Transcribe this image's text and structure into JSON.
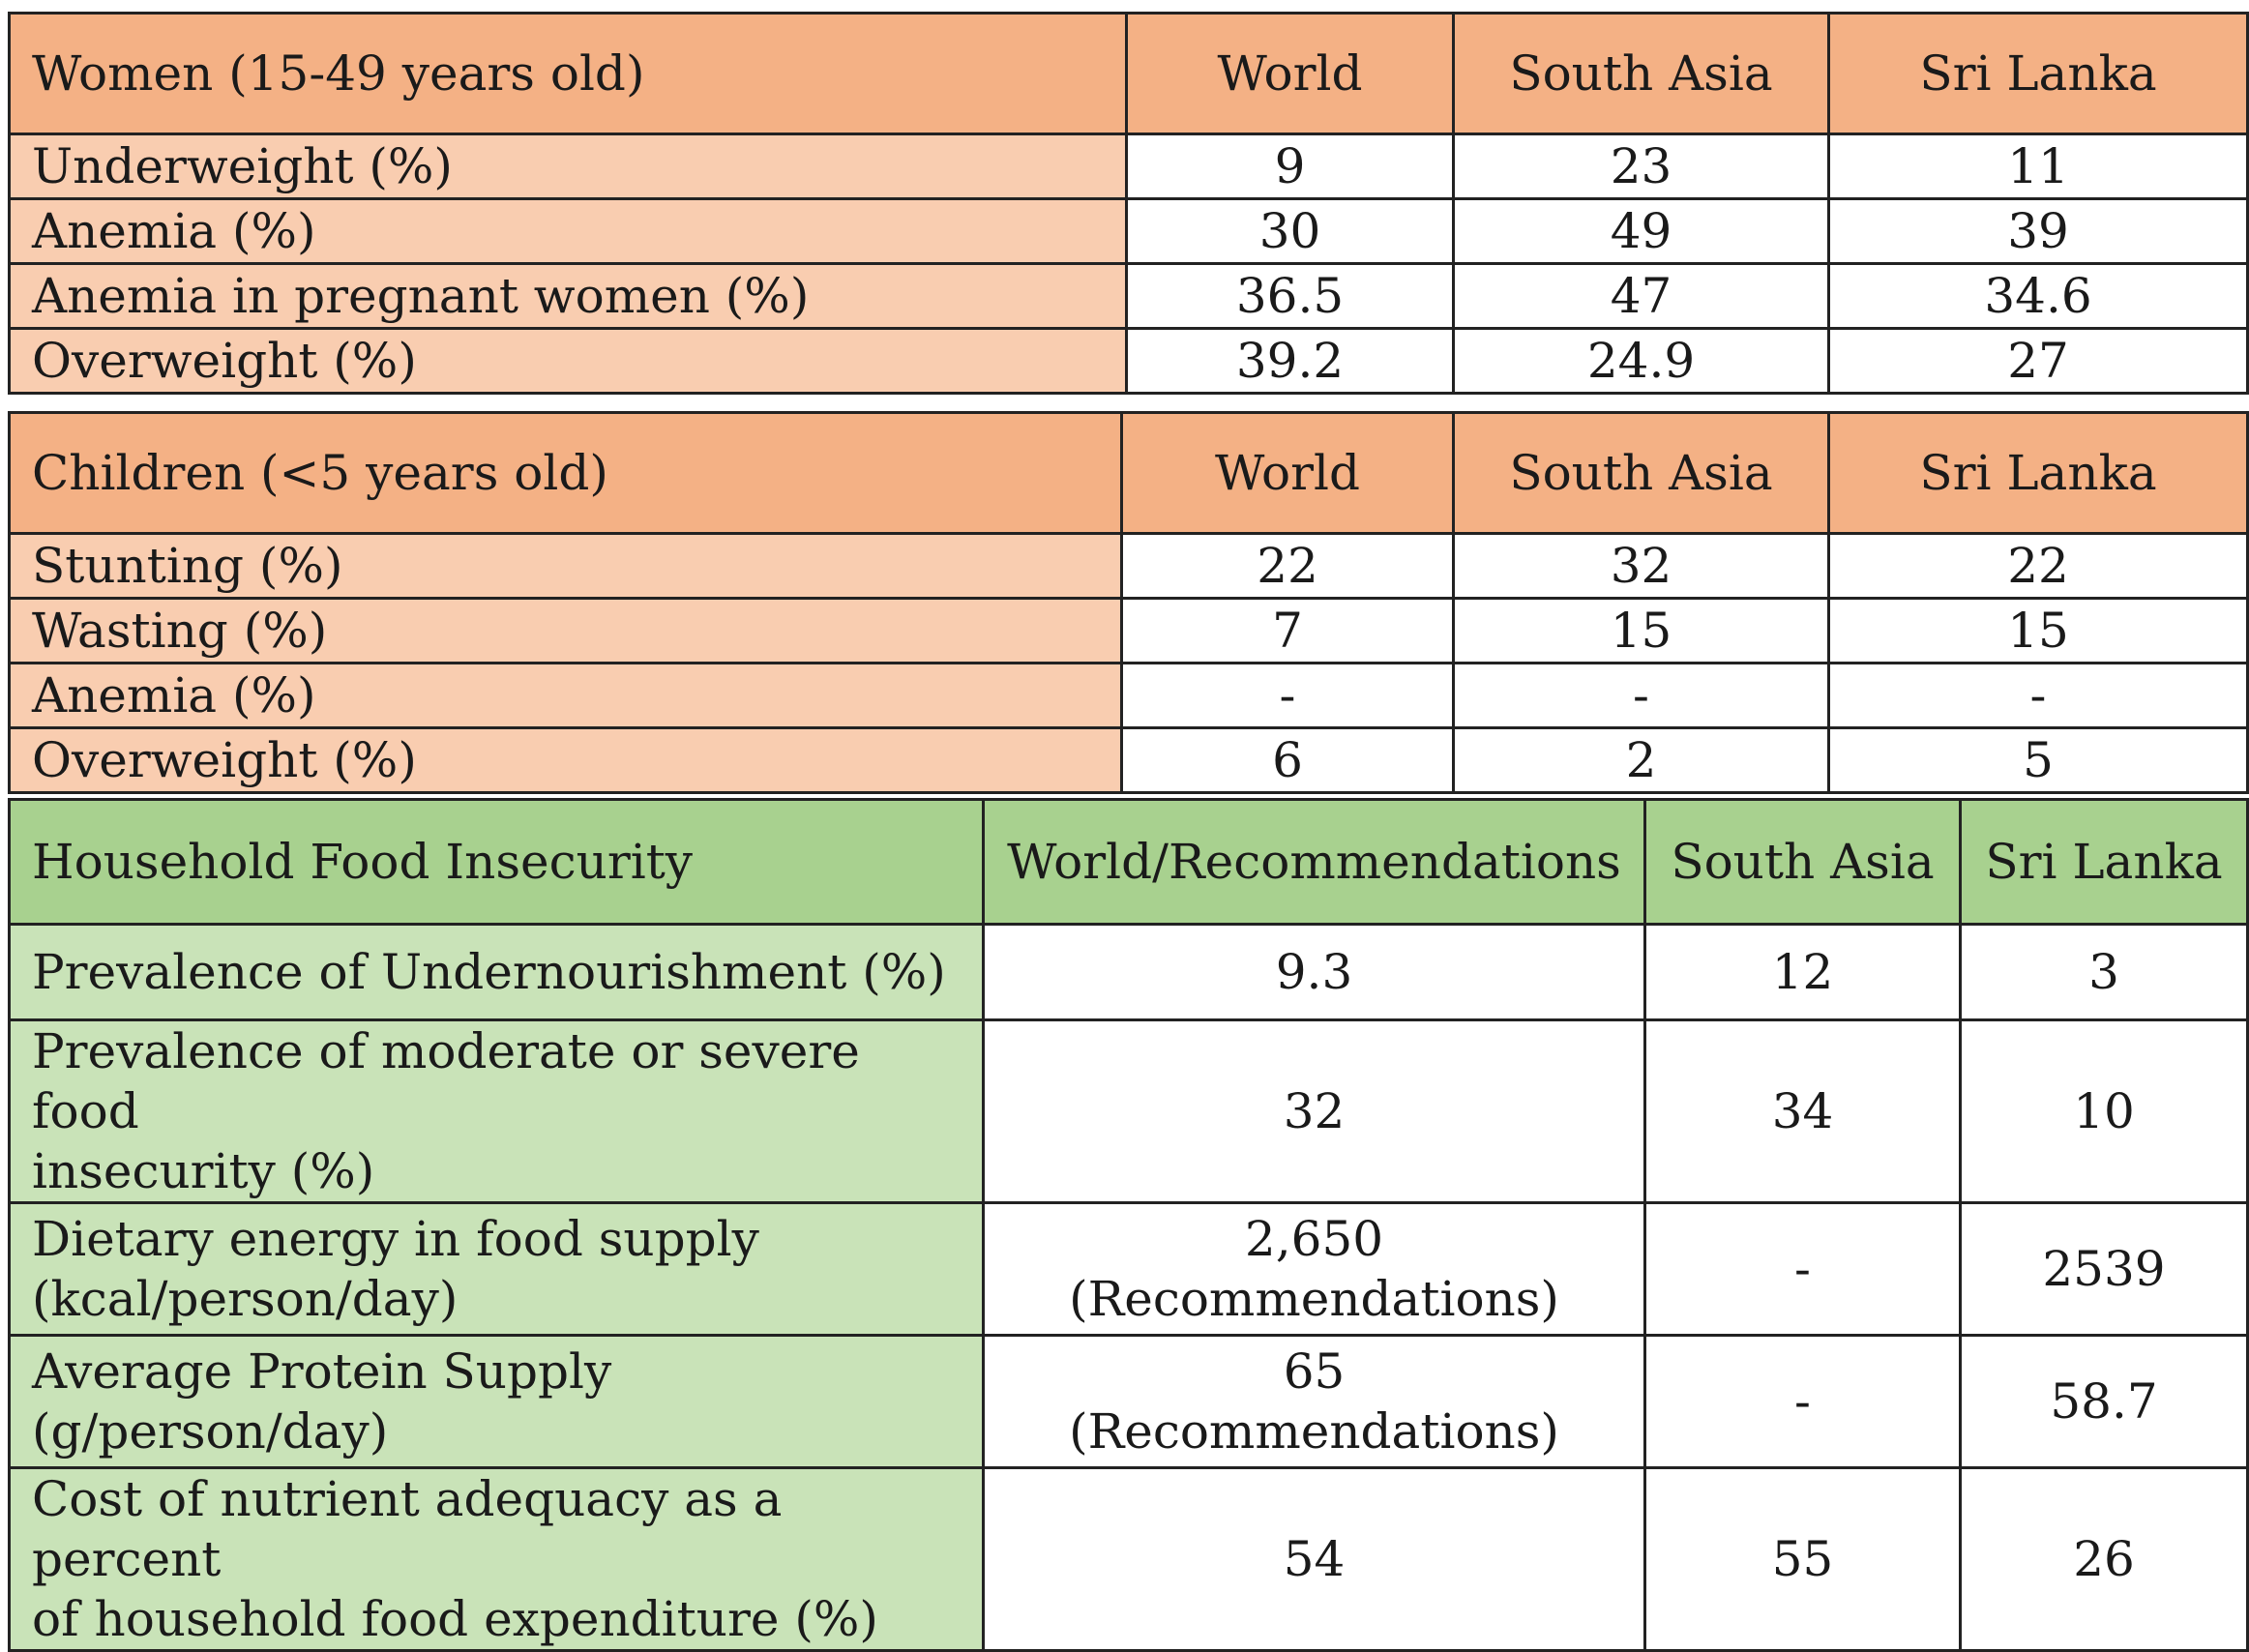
{
  "women": {
    "headers": [
      "Women (15-49 years old)",
      "World",
      "South Asia",
      "Sri Lanka"
    ],
    "rows": [
      {
        "label": "Underweight (%)",
        "values": [
          "9",
          "23",
          "11"
        ]
      },
      {
        "label": "Anemia (%)",
        "values": [
          "30",
          "49",
          "39"
        ]
      },
      {
        "label": "Anemia in pregnant women (%)",
        "values": [
          "36.5",
          "47",
          "34.6"
        ]
      },
      {
        "label": "Overweight (%)",
        "values": [
          "39.2",
          "24.9",
          "27"
        ]
      }
    ]
  },
  "children": {
    "headers": [
      "Children (<5 years old)",
      "World",
      "South Asia",
      "Sri Lanka"
    ],
    "rows": [
      {
        "label": "Stunting (%)",
        "values": [
          "22",
          "32",
          "22"
        ]
      },
      {
        "label": "Wasting (%)",
        "values": [
          "7",
          "15",
          "15"
        ]
      },
      {
        "label": "Anemia (%)",
        "values": [
          "-",
          "-",
          "-"
        ]
      },
      {
        "label": "Overweight (%)",
        "values": [
          "6",
          "2",
          "5"
        ]
      }
    ]
  },
  "household": {
    "headers": [
      "Household Food Insecurity",
      "World/Recommendations",
      "South Asia",
      "Sri Lanka"
    ],
    "rows": [
      {
        "label": [
          "Prevalence of Undernourishment (%)"
        ],
        "world": [
          "9.3"
        ],
        "south_asia": "12",
        "sri_lanka": "3"
      },
      {
        "label": [
          "Prevalence of moderate or severe food",
          "insecurity (%)"
        ],
        "world": [
          "32"
        ],
        "south_asia": "34",
        "sri_lanka": "10"
      },
      {
        "label": [
          "Dietary energy in food supply",
          "(kcal/person/day)"
        ],
        "world": [
          "2,650",
          "(Recommendations)"
        ],
        "south_asia": "-",
        "sri_lanka": "2539"
      },
      {
        "label": [
          "Average Protein Supply",
          "(g/person/day)"
        ],
        "world": [
          "65",
          "(Recommendations)"
        ],
        "south_asia": "-",
        "sri_lanka": "58.7"
      },
      {
        "label": [
          "Cost of nutrient adequacy as a percent",
          "of household food expenditure (%)"
        ],
        "world": [
          "54"
        ],
        "south_asia": "55",
        "sri_lanka": "26"
      }
    ]
  },
  "colors": {
    "orange_header": "#f4b185",
    "orange_row": "#f9cdb0",
    "green_header": "#a8d18f",
    "green_row": "#c9e3b8"
  }
}
